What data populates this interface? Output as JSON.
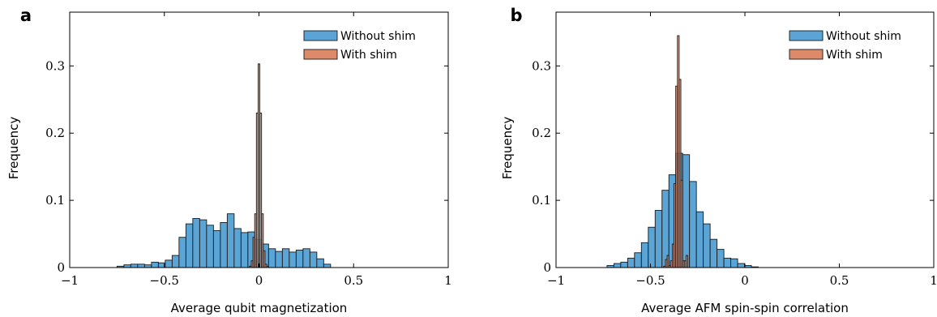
{
  "colors": {
    "without": "#5aa4d6",
    "with": "#dd8a6a",
    "edge": "#1a1a1a"
  },
  "chart_data": [
    {
      "panel": "a",
      "type": "bar",
      "xlabel": "Average qubit magnetization",
      "ylabel": "Frequency",
      "xlim": [
        -1,
        1
      ],
      "ylim": [
        0,
        0.38
      ],
      "xticks": [
        -1,
        -0.5,
        0,
        0.5,
        1
      ],
      "xtick_labels": [
        "−1",
        "−0.5",
        "0",
        "0.5",
        "1"
      ],
      "yticks": [
        0,
        0.1,
        0.2,
        0.3
      ],
      "ytick_labels": [
        "0",
        "0.1",
        "0.2",
        "0.3"
      ],
      "legend_position": "top-right",
      "series": [
        {
          "name": "Without shim",
          "color": "#5aa4d6",
          "bins_start": -0.75,
          "bin_width": 0.0364,
          "values": [
            0.002,
            0.004,
            0.005,
            0.005,
            0.004,
            0.008,
            0.007,
            0.011,
            0.018,
            0.045,
            0.065,
            0.073,
            0.071,
            0.063,
            0.055,
            0.067,
            0.08,
            0.058,
            0.052,
            0.053,
            0.042,
            0.035,
            0.028,
            0.024,
            0.028,
            0.023,
            0.026,
            0.028,
            0.023,
            0.013,
            0.005
          ]
        },
        {
          "name": "With shim",
          "color": "#dd8a6a",
          "bins_start": -0.05,
          "bin_width": 0.0091,
          "values": [
            0.002,
            0.01,
            0.045,
            0.08,
            0.23,
            0.303,
            0.23,
            0.08,
            0.025,
            0.005,
            0.002
          ]
        }
      ]
    },
    {
      "panel": "b",
      "type": "bar",
      "xlabel": "Average AFM spin-spin correlation",
      "ylabel": "Frequency",
      "xlim": [
        -1,
        1
      ],
      "ylim": [
        0,
        0.38
      ],
      "xticks": [
        -1,
        -0.5,
        0,
        0.5,
        1
      ],
      "xtick_labels": [
        "−1",
        "−0.5",
        "0",
        "0.5",
        "1"
      ],
      "yticks": [
        0,
        0.1,
        0.2,
        0.3
      ],
      "ytick_labels": [
        "0",
        "0.1",
        "0.2",
        "0.3"
      ],
      "legend_position": "top-right",
      "series": [
        {
          "name": "Without shim",
          "color": "#5aa4d6",
          "bins_start": -0.73,
          "bin_width": 0.0364,
          "values": [
            0.003,
            0.006,
            0.008,
            0.014,
            0.022,
            0.037,
            0.06,
            0.085,
            0.115,
            0.138,
            0.17,
            0.168,
            0.128,
            0.083,
            0.065,
            0.042,
            0.027,
            0.014,
            0.013,
            0.006,
            0.003,
            0.001
          ]
        },
        {
          "name": "With shim",
          "color": "#dd8a6a",
          "bins_start": -0.43,
          "bin_width": 0.0091,
          "values": [
            0.002,
            0.012,
            0.018,
            0.003,
            0.01,
            0.035,
            0.125,
            0.27,
            0.345,
            0.28,
            0.13,
            0.01,
            0.01,
            0.018
          ]
        }
      ]
    }
  ]
}
